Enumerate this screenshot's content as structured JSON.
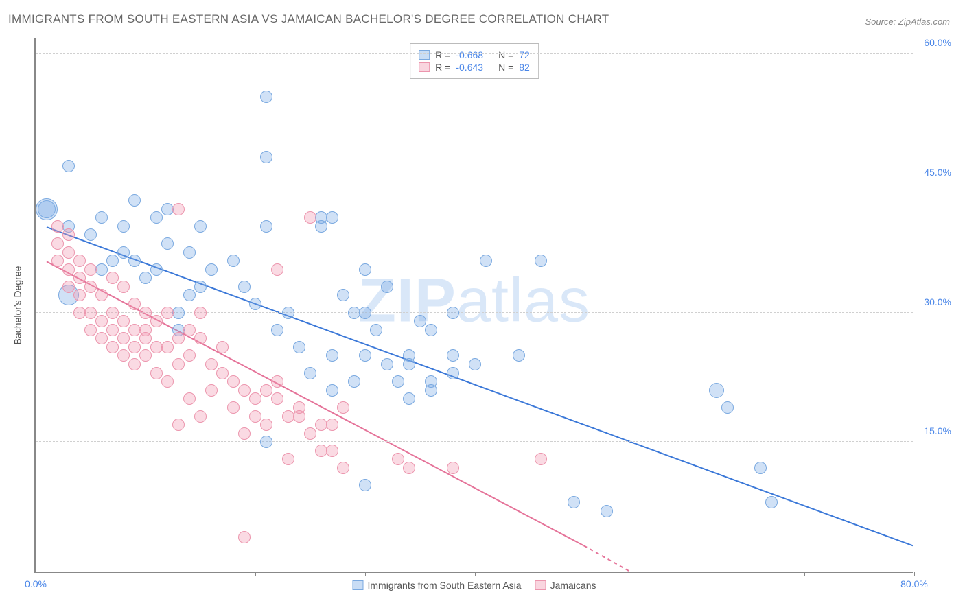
{
  "title": "IMMIGRANTS FROM SOUTH EASTERN ASIA VS JAMAICAN BACHELOR'S DEGREE CORRELATION CHART",
  "source": "Source: ZipAtlas.com",
  "watermark_bold": "ZIP",
  "watermark_light": "atlas",
  "chart": {
    "type": "scatter",
    "background_color": "#ffffff",
    "grid_color": "#d0d0d0",
    "axis_color": "#888888",
    "y_axis_label": "Bachelor's Degree",
    "label_fontsize": 14,
    "xlim": [
      0,
      80
    ],
    "ylim": [
      0,
      62
    ],
    "x_ticks": [
      0,
      10,
      20,
      30,
      40,
      50,
      60,
      70,
      80
    ],
    "x_tick_labels": {
      "0": "0.0%",
      "80": "80.0%"
    },
    "y_gridlines": [
      15,
      30,
      45,
      60
    ],
    "y_tick_labels": {
      "15": "15.0%",
      "30": "30.0%",
      "45": "45.0%",
      "60": "60.0%"
    },
    "marker_radius": 9,
    "marker_radius_large": 13,
    "marker_opacity": 0.35,
    "line_width": 2
  },
  "series": [
    {
      "name": "Immigrants from South Eastern Asia",
      "color_fill": "#7aa9e0",
      "color_line": "#3b78d8",
      "R": "-0.668",
      "N": "72",
      "trend": {
        "x1": 1,
        "y1": 40,
        "x2": 80,
        "y2": 3
      },
      "points": [
        [
          1,
          42,
          13
        ],
        [
          1,
          42,
          16
        ],
        [
          3,
          40,
          9
        ],
        [
          5,
          39,
          9
        ],
        [
          3,
          47,
          9
        ],
        [
          3,
          32,
          15
        ],
        [
          6,
          35,
          9
        ],
        [
          8,
          37,
          9
        ],
        [
          9,
          36,
          9
        ],
        [
          11,
          41,
          9
        ],
        [
          12,
          38,
          9
        ],
        [
          12,
          42,
          9
        ],
        [
          10,
          34,
          9
        ],
        [
          8,
          40,
          9
        ],
        [
          7,
          36,
          9
        ],
        [
          6,
          41,
          9
        ],
        [
          9,
          43,
          9
        ],
        [
          11,
          35,
          9
        ],
        [
          14,
          37,
          9
        ],
        [
          15,
          40,
          9
        ],
        [
          16,
          35,
          9
        ],
        [
          14,
          32,
          9
        ],
        [
          13,
          30,
          9
        ],
        [
          13,
          28,
          9
        ],
        [
          18,
          36,
          9
        ],
        [
          19,
          33,
          9
        ],
        [
          20,
          31,
          9
        ],
        [
          21,
          55,
          9
        ],
        [
          21,
          48,
          9
        ],
        [
          21,
          40,
          9
        ],
        [
          21,
          15,
          9
        ],
        [
          22,
          28,
          9
        ],
        [
          23,
          30,
          9
        ],
        [
          24,
          26,
          9
        ],
        [
          25,
          23,
          9
        ],
        [
          26,
          41,
          9
        ],
        [
          27,
          41,
          9
        ],
        [
          28,
          32,
          9
        ],
        [
          27,
          25,
          9
        ],
        [
          27,
          21,
          9
        ],
        [
          26,
          40,
          9
        ],
        [
          29,
          30,
          9
        ],
        [
          29,
          22,
          9
        ],
        [
          30,
          35,
          9
        ],
        [
          30,
          25,
          9
        ],
        [
          30,
          10,
          9
        ],
        [
          31,
          28,
          9
        ],
        [
          32,
          24,
          9
        ],
        [
          32,
          33,
          9
        ],
        [
          33,
          22,
          9
        ],
        [
          34,
          20,
          9
        ],
        [
          34,
          25,
          9
        ],
        [
          34,
          24,
          9
        ],
        [
          35,
          29,
          9
        ],
        [
          36,
          22,
          9
        ],
        [
          36,
          28,
          9
        ],
        [
          36,
          21,
          9
        ],
        [
          38,
          23,
          9
        ],
        [
          38,
          25,
          9
        ],
        [
          38,
          30,
          9
        ],
        [
          40,
          24,
          9
        ],
        [
          41,
          36,
          9
        ],
        [
          44,
          25,
          9
        ],
        [
          46,
          36,
          9
        ],
        [
          49,
          8,
          9
        ],
        [
          52,
          7,
          9
        ],
        [
          62,
          21,
          11
        ],
        [
          63,
          19,
          9
        ],
        [
          66,
          12,
          9
        ],
        [
          67,
          8,
          9
        ],
        [
          30,
          30,
          9
        ],
        [
          15,
          33,
          9
        ]
      ]
    },
    {
      "name": "Jamaicans",
      "color_fill": "#ec95ad",
      "color_line": "#e57399",
      "R": "-0.643",
      "N": "82",
      "trend": {
        "x1": 1,
        "y1": 36,
        "x2": 50,
        "y2": 3
      },
      "trend_dashed": {
        "x1": 50,
        "y1": 3,
        "x2": 57,
        "y2": -2
      },
      "points": [
        [
          2,
          38,
          9
        ],
        [
          2,
          36,
          9
        ],
        [
          2,
          40,
          9
        ],
        [
          3,
          35,
          9
        ],
        [
          3,
          33,
          9
        ],
        [
          3,
          37,
          9
        ],
        [
          3,
          39,
          9
        ],
        [
          4,
          34,
          9
        ],
        [
          4,
          32,
          9
        ],
        [
          4,
          30,
          9
        ],
        [
          4,
          36,
          9
        ],
        [
          5,
          30,
          9
        ],
        [
          5,
          33,
          9
        ],
        [
          5,
          28,
          9
        ],
        [
          5,
          35,
          9
        ],
        [
          6,
          29,
          9
        ],
        [
          6,
          32,
          9
        ],
        [
          6,
          27,
          9
        ],
        [
          7,
          30,
          9
        ],
        [
          7,
          34,
          9
        ],
        [
          7,
          26,
          9
        ],
        [
          7,
          28,
          9
        ],
        [
          8,
          29,
          9
        ],
        [
          8,
          25,
          9
        ],
        [
          8,
          33,
          9
        ],
        [
          8,
          27,
          9
        ],
        [
          9,
          31,
          9
        ],
        [
          9,
          28,
          9
        ],
        [
          9,
          24,
          9
        ],
        [
          9,
          26,
          9
        ],
        [
          10,
          27,
          9
        ],
        [
          10,
          30,
          9
        ],
        [
          10,
          28,
          9
        ],
        [
          10,
          25,
          9
        ],
        [
          11,
          26,
          9
        ],
        [
          11,
          29,
          9
        ],
        [
          11,
          23,
          9
        ],
        [
          12,
          26,
          9
        ],
        [
          12,
          30,
          9
        ],
        [
          12,
          22,
          9
        ],
        [
          13,
          27,
          9
        ],
        [
          13,
          24,
          9
        ],
        [
          13,
          17,
          9
        ],
        [
          13,
          42,
          9
        ],
        [
          14,
          20,
          9
        ],
        [
          14,
          25,
          9
        ],
        [
          14,
          28,
          9
        ],
        [
          15,
          27,
          9
        ],
        [
          15,
          30,
          9
        ],
        [
          15,
          18,
          9
        ],
        [
          16,
          24,
          9
        ],
        [
          16,
          21,
          9
        ],
        [
          17,
          23,
          9
        ],
        [
          17,
          26,
          9
        ],
        [
          18,
          22,
          9
        ],
        [
          18,
          19,
          9
        ],
        [
          19,
          21,
          9
        ],
        [
          19,
          16,
          9
        ],
        [
          19,
          4,
          9
        ],
        [
          20,
          20,
          9
        ],
        [
          20,
          18,
          9
        ],
        [
          21,
          21,
          9
        ],
        [
          21,
          17,
          9
        ],
        [
          22,
          20,
          9
        ],
        [
          22,
          22,
          9
        ],
        [
          22,
          35,
          9
        ],
        [
          23,
          18,
          9
        ],
        [
          23,
          13,
          9
        ],
        [
          24,
          18,
          9
        ],
        [
          24,
          19,
          9
        ],
        [
          25,
          16,
          9
        ],
        [
          25,
          41,
          9
        ],
        [
          26,
          17,
          9
        ],
        [
          26,
          14,
          9
        ],
        [
          27,
          14,
          9
        ],
        [
          27,
          17,
          9
        ],
        [
          28,
          12,
          9
        ],
        [
          28,
          19,
          9
        ],
        [
          33,
          13,
          9
        ],
        [
          34,
          12,
          9
        ],
        [
          38,
          12,
          9
        ],
        [
          46,
          13,
          9
        ]
      ]
    }
  ],
  "legend": {
    "top": {
      "r_prefix": "R =",
      "n_prefix": "N ="
    },
    "bottom": {
      "series1": "Immigrants from South Eastern Asia",
      "series2": "Jamaicans"
    }
  }
}
